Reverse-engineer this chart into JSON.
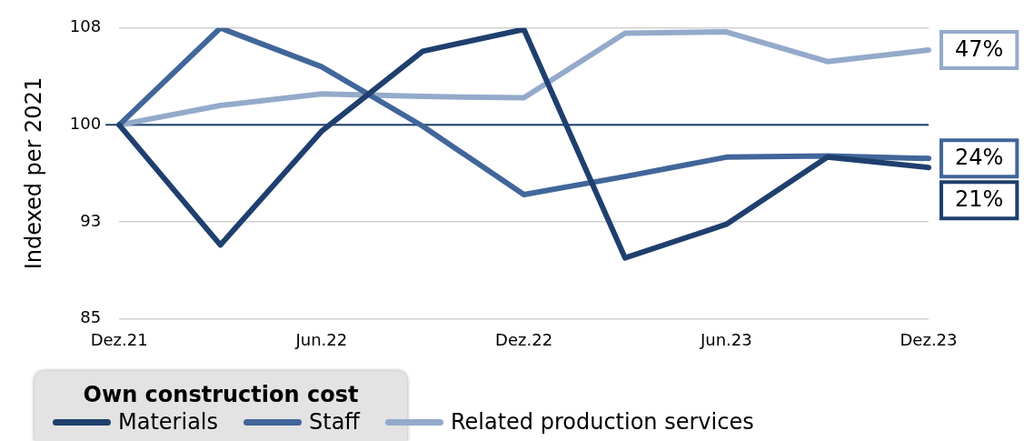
{
  "chart_data": {
    "type": "line",
    "ylabel": "Indexed per 2021",
    "legend_title": "Own construction cost",
    "categories": [
      "Dez.21",
      null,
      "Jun.22",
      null,
      "Dez.22",
      null,
      "Jun.23",
      null,
      "Dez.23"
    ],
    "series": [
      {
        "name": "Materials",
        "color": "#1f3f6e",
        "values": [
          100,
          90.7,
          99.5,
          105.7,
          107.4,
          89.7,
          92.3,
          97.5,
          96.7
        ]
      },
      {
        "name": "Staff",
        "color": "#41669a",
        "values": [
          100,
          107.5,
          104.5,
          99.9,
          94.6,
          96.0,
          97.5,
          97.6,
          97.4
        ]
      },
      {
        "name": "Related production services",
        "color": "#94aacb",
        "values": [
          100,
          101.5,
          102.4,
          102.2,
          102.1,
          107.1,
          107.2,
          104.9,
          105.8
        ]
      }
    ],
    "ylim": [
      85,
      107.5
    ],
    "yticks": [
      85,
      {
        "value": 92.5,
        "label": "93"
      },
      100,
      {
        "value": 107.5,
        "label": "108"
      }
    ],
    "ref_lines": [
      {
        "axis": "y",
        "value": 100,
        "color": "#1f3f6e"
      }
    ],
    "annotations": [
      "47%",
      "24%",
      "21%"
    ],
    "grid": "y",
    "legend": "bottom",
    "marker": "none",
    "line_style": "solid"
  }
}
